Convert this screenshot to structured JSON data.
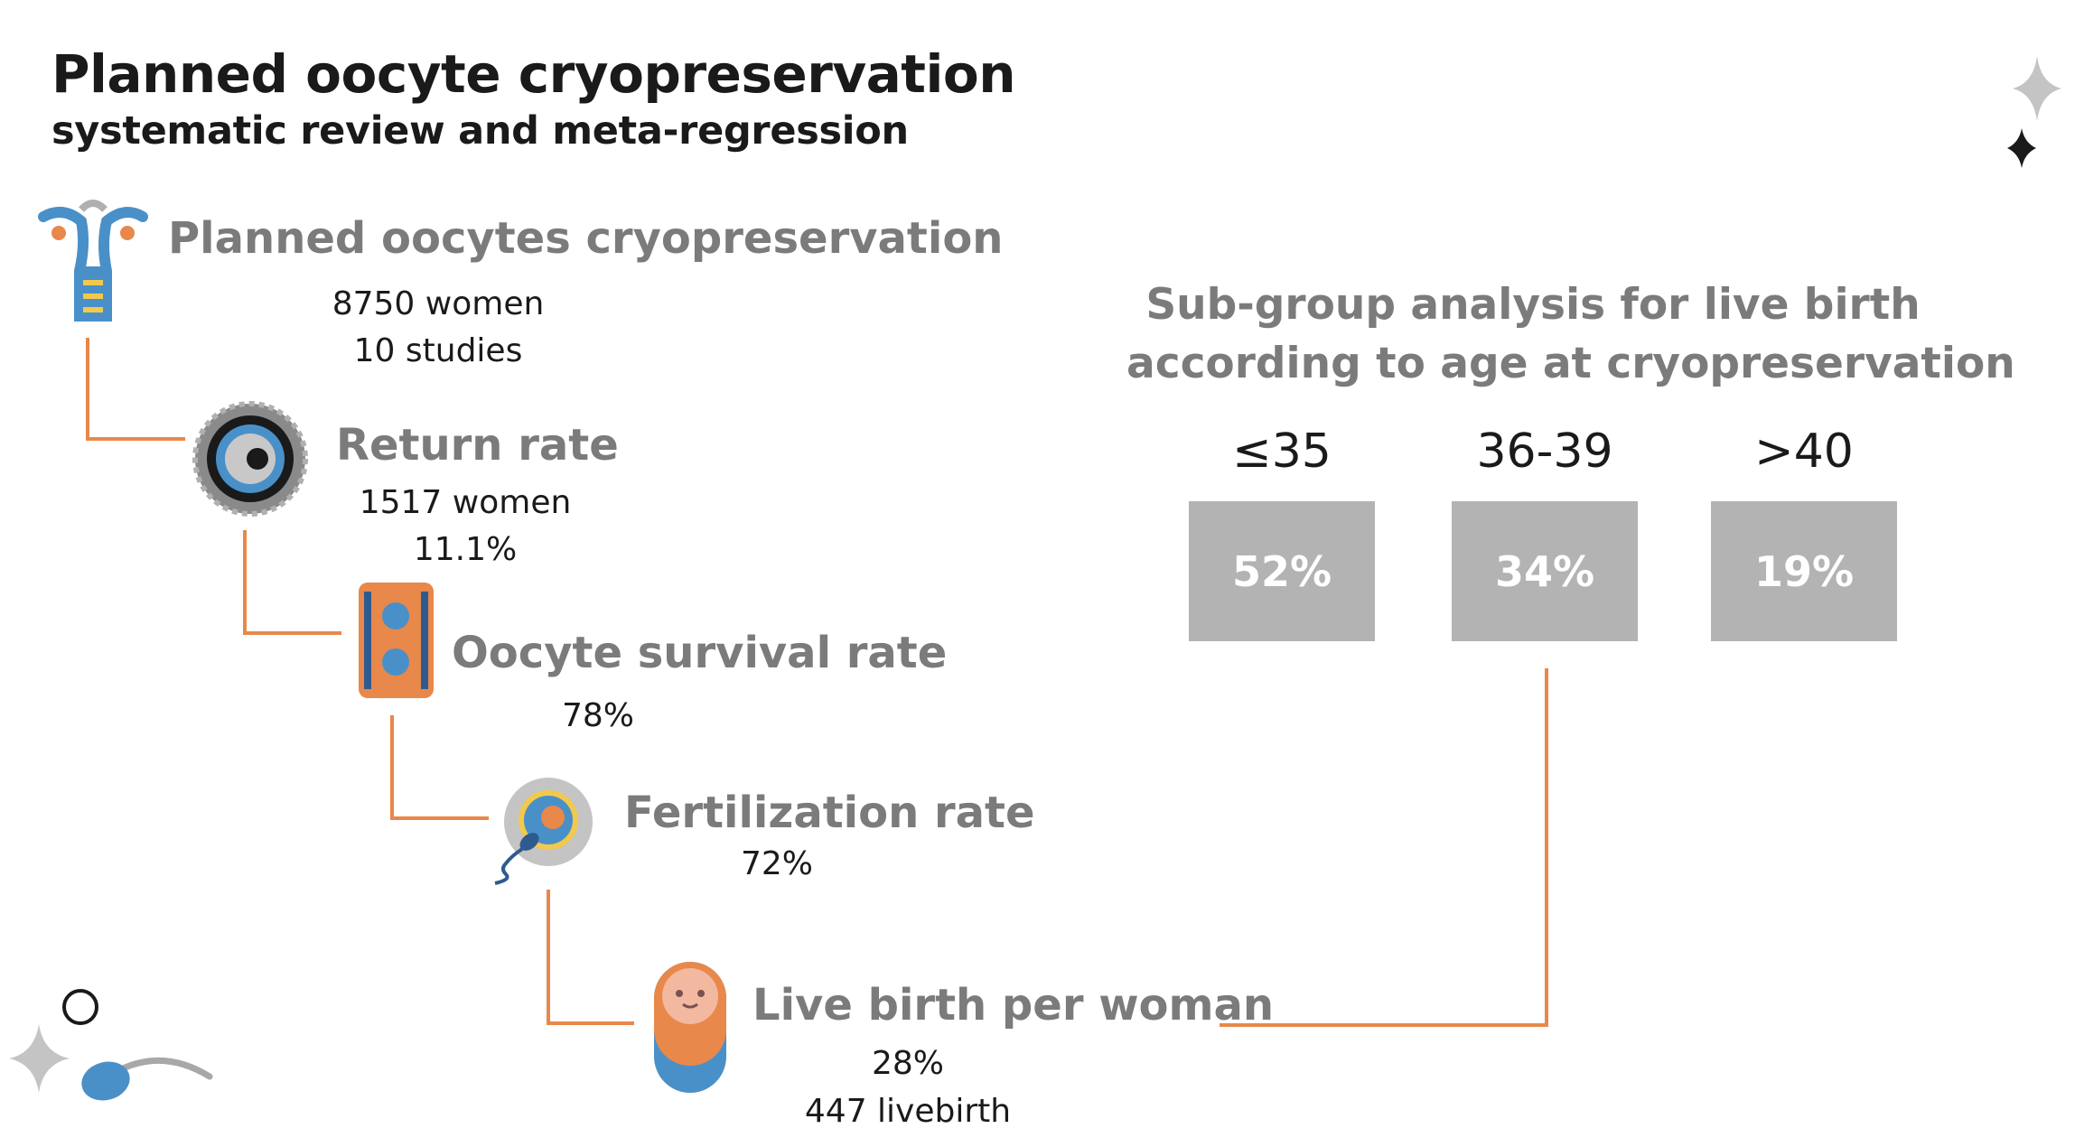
{
  "header": {
    "title": "Planned oocyte cryopreservation",
    "subtitle": "systematic review and meta-regression"
  },
  "steps": [
    {
      "label": "Planned oocytes cryopreservation",
      "values": [
        "8750 women",
        "10 studies"
      ],
      "icon": "uterus-icon"
    },
    {
      "label": "Return rate",
      "values": [
        "1517 women",
        "11.1%"
      ],
      "icon": "oocyte-icon"
    },
    {
      "label": "Oocyte survival rate",
      "values": [
        "78%"
      ],
      "icon": "survival-dish-icon"
    },
    {
      "label": "Fertilization rate",
      "values": [
        "72%"
      ],
      "icon": "fertilization-icon"
    },
    {
      "label": "Live birth per woman",
      "values": [
        "28%",
        "447 livebirth"
      ],
      "icon": "baby-icon"
    }
  ],
  "subgroup": {
    "title_line1": "Sub-group analysis for live birth",
    "title_line2": "according to age at cryopreservation",
    "groups": [
      {
        "age": "≤35",
        "value": "52%"
      },
      {
        "age": "36-39",
        "value": "34%"
      },
      {
        "age": ">40",
        "value": "19%"
      }
    ]
  },
  "colors": {
    "connector": "#e8884a",
    "box": "#b3b3b3",
    "accent_blue": "#4a90c8",
    "accent_orange": "#e8884a",
    "label_gray": "#7b7b7b"
  }
}
